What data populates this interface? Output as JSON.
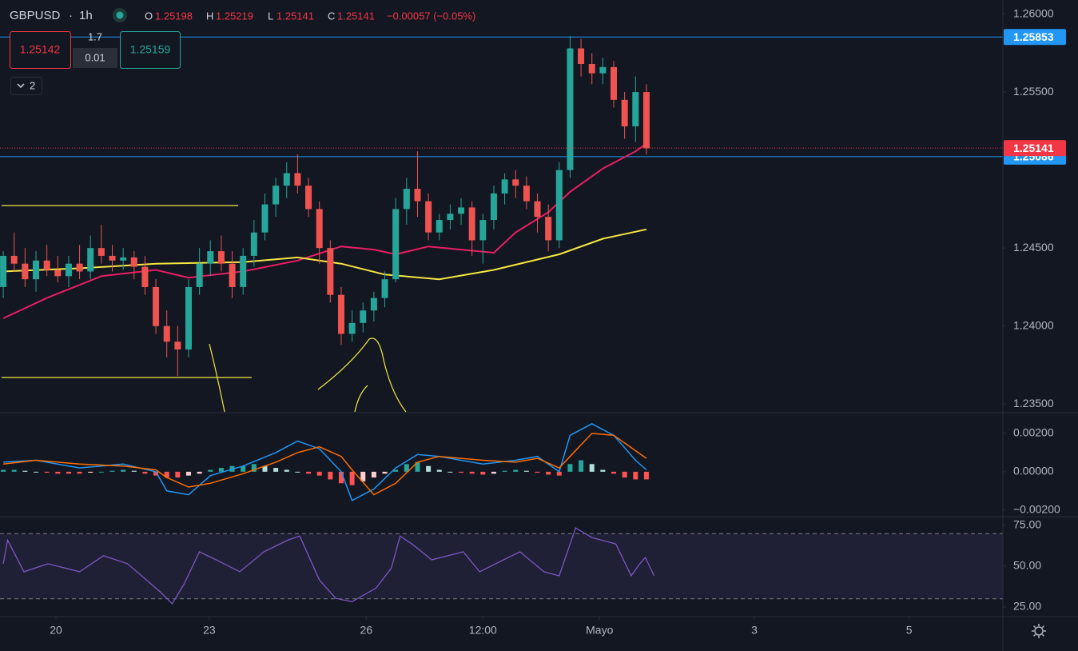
{
  "header": {
    "symbol": "GBPUSD",
    "separator": "·",
    "interval": "1h",
    "open_label": "O",
    "open": "1.25198",
    "high_label": "H",
    "high": "1.25219",
    "low_label": "L",
    "low": "1.25141",
    "close_label": "C",
    "close": "1.25141",
    "change": "−0.00057 (−0.05%)"
  },
  "trade_panel": {
    "sell": "1.25142",
    "spread": "1.7",
    "quantity": "0.01",
    "buy": "1.25159"
  },
  "indicators_toggle": "2",
  "chart_data": [
    {
      "type": "candlestick",
      "open": [
        1.2425,
        1.2445,
        1.244,
        1.243,
        1.2442,
        1.2436,
        1.2432,
        1.244,
        1.2435,
        1.245,
        1.2445,
        1.2442,
        1.2444,
        1.2438,
        1.2425,
        1.24,
        1.239,
        1.2385,
        1.2425,
        1.244,
        1.2448,
        1.244,
        1.2425,
        1.2445,
        1.246,
        1.2478,
        1.249,
        1.2498,
        1.249,
        1.2475,
        1.245,
        1.242,
        1.2395,
        1.2402,
        1.241,
        1.2418,
        1.243,
        1.2475,
        1.2488,
        1.248,
        1.246,
        1.2468,
        1.2472,
        1.2476,
        1.2455,
        1.2468,
        1.2485,
        1.2494,
        1.249,
        1.248,
        1.247,
        1.2455,
        1.25,
        1.2578,
        1.2568,
        1.2562,
        1.2566,
        1.2545,
        1.2528,
        1.255
      ],
      "high": [
        1.2448,
        1.246,
        1.245,
        1.2448,
        1.2452,
        1.2445,
        1.2445,
        1.2452,
        1.2458,
        1.2465,
        1.2452,
        1.245,
        1.2448,
        1.2445,
        1.243,
        1.241,
        1.24,
        1.243,
        1.245,
        1.2455,
        1.2458,
        1.2448,
        1.245,
        1.2468,
        1.2485,
        1.2495,
        1.2505,
        1.251,
        1.2495,
        1.248,
        1.2455,
        1.2425,
        1.241,
        1.2415,
        1.2422,
        1.2435,
        1.2482,
        1.2495,
        1.2512,
        1.2485,
        1.2472,
        1.2478,
        1.2482,
        1.248,
        1.2472,
        1.249,
        1.2498,
        1.25,
        1.2496,
        1.2485,
        1.2478,
        1.2505,
        1.2586,
        1.2584,
        1.2575,
        1.2572,
        1.257,
        1.255,
        1.256,
        1.2555
      ],
      "low": [
        1.2418,
        1.2435,
        1.2425,
        1.2422,
        1.2432,
        1.2428,
        1.2425,
        1.243,
        1.243,
        1.244,
        1.2435,
        1.2436,
        1.243,
        1.242,
        1.2395,
        1.238,
        1.2368,
        1.238,
        1.242,
        1.2432,
        1.2435,
        1.2418,
        1.242,
        1.2438,
        1.2455,
        1.247,
        1.2482,
        1.2485,
        1.247,
        1.244,
        1.2415,
        1.2388,
        1.239,
        1.2396,
        1.2403,
        1.2412,
        1.2428,
        1.2465,
        1.247,
        1.2455,
        1.2455,
        1.2462,
        1.2465,
        1.2445,
        1.244,
        1.2462,
        1.2478,
        1.2482,
        1.2475,
        1.246,
        1.2448,
        1.245,
        1.2495,
        1.256,
        1.2555,
        1.2555,
        1.254,
        1.252,
        1.2518,
        1.251
      ],
      "close": [
        1.2445,
        1.244,
        1.243,
        1.2442,
        1.2436,
        1.2432,
        1.244,
        1.2435,
        1.245,
        1.2445,
        1.2442,
        1.2444,
        1.2438,
        1.2425,
        1.24,
        1.239,
        1.2385,
        1.2425,
        1.244,
        1.2448,
        1.244,
        1.2425,
        1.2445,
        1.246,
        1.2478,
        1.249,
        1.2498,
        1.249,
        1.2475,
        1.245,
        1.242,
        1.2395,
        1.2402,
        1.241,
        1.2418,
        1.243,
        1.2475,
        1.2488,
        1.248,
        1.246,
        1.2468,
        1.2472,
        1.2476,
        1.2455,
        1.2468,
        1.2485,
        1.2494,
        1.249,
        1.248,
        1.247,
        1.2455,
        1.25,
        1.2578,
        1.2568,
        1.2562,
        1.2566,
        1.2545,
        1.2528,
        1.255,
        1.2514
      ],
      "up_color": "#26a69a",
      "down_color": "#ef5350",
      "lines": [
        {
          "color": "#e91e63",
          "x": [
            0,
            4,
            9,
            14,
            17,
            22,
            27,
            31,
            34,
            36,
            39,
            42,
            45,
            47,
            50,
            52,
            55,
            58,
            59
          ],
          "values": [
            1.2405,
            1.2418,
            1.2432,
            1.2436,
            1.2431,
            1.2435,
            1.2442,
            1.2451,
            1.2449,
            1.2446,
            1.2451,
            1.2449,
            1.2447,
            1.246,
            1.2473,
            1.2486,
            1.2501,
            1.2512,
            1.2517
          ]
        },
        {
          "color": "#f5e642",
          "x": [
            0,
            7,
            14,
            22,
            27,
            31,
            35,
            40,
            45,
            51,
            55,
            59
          ],
          "values": [
            1.2435,
            1.2437,
            1.244,
            1.2441,
            1.2444,
            1.244,
            1.2433,
            1.243,
            1.2436,
            1.2446,
            1.2456,
            1.2462
          ]
        }
      ],
      "hlines": [
        {
          "value": 1.25853,
          "color": "#2196f3"
        },
        {
          "value": 1.25086,
          "color": "#2196f3"
        }
      ],
      "last_price": {
        "value": 1.25141,
        "color": "#f23645"
      },
      "xlim": [
        -0.3,
        91.7
      ],
      "xticks": [
        {
          "value": 4.83,
          "label": "20"
        },
        {
          "value": 18.9,
          "label": "23"
        },
        {
          "value": 33.3,
          "label": "26"
        },
        {
          "value": 44.0,
          "label": "12:00"
        },
        {
          "value": 54.7,
          "label": "Mayo"
        },
        {
          "value": 68.9,
          "label": "3"
        },
        {
          "value": 83.1,
          "label": "5"
        }
      ],
      "ylim": [
        1.2345,
        1.2609
      ],
      "yticks": [
        {
          "value": 1.26,
          "label": "1.26000"
        },
        {
          "value": 1.255,
          "label": "1.25500"
        },
        {
          "value": 1.245,
          "label": "1.24500"
        },
        {
          "value": 1.24,
          "label": "1.24000"
        },
        {
          "value": 1.235,
          "label": "1.23500"
        }
      ]
    },
    {
      "type": "macd",
      "series": [
        {
          "color": "#2196f3",
          "x": [
            0,
            3,
            7,
            11,
            14,
            15,
            17,
            19,
            22,
            25,
            27,
            29,
            31,
            32,
            34,
            36,
            38,
            40,
            44,
            47,
            49,
            51,
            52,
            54,
            56,
            58,
            59
          ],
          "values": [
            0.0005,
            0.0006,
            0.0002,
            0.0004,
            0.0,
            -0.001,
            -0.0012,
            -0.0002,
            0.0003,
            0.001,
            0.0016,
            0.0012,
            0.0,
            -0.0015,
            -0.0009,
            0.0002,
            0.0009,
            0.0008,
            0.0004,
            0.0006,
            0.0008,
            0.0,
            0.0019,
            0.0025,
            0.0019,
            0.0006,
            0.0001
          ]
        },
        {
          "color": "#ff6d00",
          "x": [
            0,
            3,
            7,
            11,
            14,
            15,
            17,
            19,
            22,
            25,
            27,
            29,
            31,
            32,
            34,
            36,
            38,
            40,
            44,
            47,
            49,
            51,
            52,
            54,
            56,
            58,
            59
          ],
          "values": [
            0.0004,
            0.0006,
            0.0004,
            0.0003,
            0.0001,
            -0.0003,
            -0.0008,
            -0.0006,
            -0.0001,
            0.0005,
            0.001,
            0.0013,
            0.0008,
            0.0001,
            -0.0012,
            -0.0006,
            0.0005,
            0.0008,
            0.0006,
            0.0005,
            0.0007,
            0.0002,
            0.0008,
            0.002,
            0.0019,
            0.0011,
            0.0007
          ]
        }
      ],
      "histogram": [
        0.0001,
        0.0001,
        5e-05,
        0,
        -5e-05,
        -0.0001,
        -0.0001,
        -0.0001,
        -5e-05,
        0,
        5e-05,
        0.0001,
        5e-05,
        -0.0001,
        -0.0002,
        -0.0003,
        -0.0003,
        -0.0002,
        -0.0001,
        0.0001,
        0.0002,
        0.0003,
        0.0003,
        0.0004,
        0.0003,
        0.0002,
        0.0001,
        0,
        -0.0001,
        -0.0002,
        -0.0004,
        -0.0006,
        -0.0007,
        -0.0005,
        -0.0003,
        -0.0001,
        0.0001,
        0.0004,
        0.0005,
        0.0003,
        0.0001,
        0,
        -5e-05,
        -0.0001,
        -0.00015,
        -0.0001,
        5e-05,
        0.0001,
        5e-05,
        -5e-05,
        -0.00015,
        -0.0002,
        0.0004,
        0.0006,
        0.0004,
        0.0001,
        -0.0001,
        -0.0003,
        -0.0004,
        -0.0004
      ],
      "histogram_colors": {
        "up_rising": "#26a69a",
        "up_falling": "#b2dfdb",
        "down_falling": "#ff5252",
        "down_rising": "#ffcdd2"
      },
      "xlim": [
        -0.3,
        91.7
      ],
      "ylim": [
        -0.0023,
        0.00304
      ],
      "yticks": [
        {
          "value": 0.002,
          "label": "0.00200"
        },
        {
          "value": 0,
          "label": "0.00000"
        },
        {
          "value": -0.002,
          "label": "−0.00200"
        }
      ]
    },
    {
      "type": "rsi",
      "series": [
        {
          "color": "#7e57c2",
          "x": [
            0,
            0.4,
            1.9,
            4.1,
            7.0,
            9.2,
            11.4,
            14.4,
            15.5,
            16.6,
            18.0,
            19.5,
            21.7,
            23.9,
            26.1,
            27.2,
            29.0,
            30.5,
            32.0,
            34.2,
            35.6,
            36.4,
            37.5,
            39.3,
            42.2,
            43.7,
            45.9,
            47.4,
            49.6,
            51.0,
            52.5,
            54.0,
            56.2,
            57.6,
            58.4,
            58.9,
            59.7
          ],
          "values": [
            51.5,
            66,
            46.6,
            51.5,
            46.6,
            56.4,
            51.5,
            34.3,
            27,
            39.2,
            58.8,
            54,
            46.6,
            58.8,
            66,
            68.5,
            41.5,
            30.3,
            28.3,
            36.6,
            48.8,
            68.5,
            63.6,
            53.9,
            58.8,
            46.6,
            53.9,
            58.8,
            46.6,
            44.1,
            73.5,
            67.6,
            63.6,
            44.1,
            51.5,
            55.4,
            44.1
          ]
        }
      ],
      "band": [
        30,
        70
      ],
      "band_color": "#7e57c2",
      "xlim": [
        -0.3,
        91.7
      ],
      "ylim": [
        19.6,
        79.9
      ],
      "yticks": [
        {
          "value": 75,
          "label": "75.00"
        },
        {
          "value": 50,
          "label": "50.00"
        },
        {
          "value": 25,
          "label": "25.00"
        }
      ]
    }
  ]
}
